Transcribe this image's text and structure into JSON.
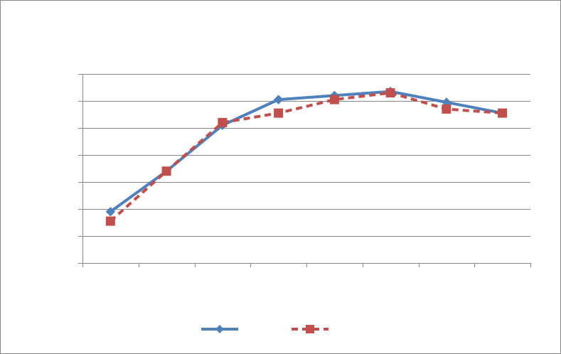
{
  "chart_data": {
    "type": "line",
    "title": "",
    "xlabel": "",
    "ylabel": "",
    "categories": [
      "",
      "",
      "",
      "",
      "",
      "",
      "",
      ""
    ],
    "x": [
      1,
      2,
      3,
      4,
      5,
      6,
      7,
      8
    ],
    "ylim": [
      0,
      7
    ],
    "ytick_count": 8,
    "grid": true,
    "legend_position": "bottom",
    "series": [
      {
        "name": "",
        "color": "#4F81BD",
        "marker": "diamond",
        "line_style": "solid",
        "values": [
          1.9,
          3.4,
          5.1,
          6.05,
          6.2,
          6.35,
          5.95,
          5.55
        ]
      },
      {
        "name": "",
        "color": "#C0504D",
        "marker": "square",
        "line_style": "dashed",
        "values": [
          1.55,
          3.4,
          5.2,
          5.55,
          6.05,
          6.3,
          5.7,
          5.55
        ]
      }
    ]
  }
}
